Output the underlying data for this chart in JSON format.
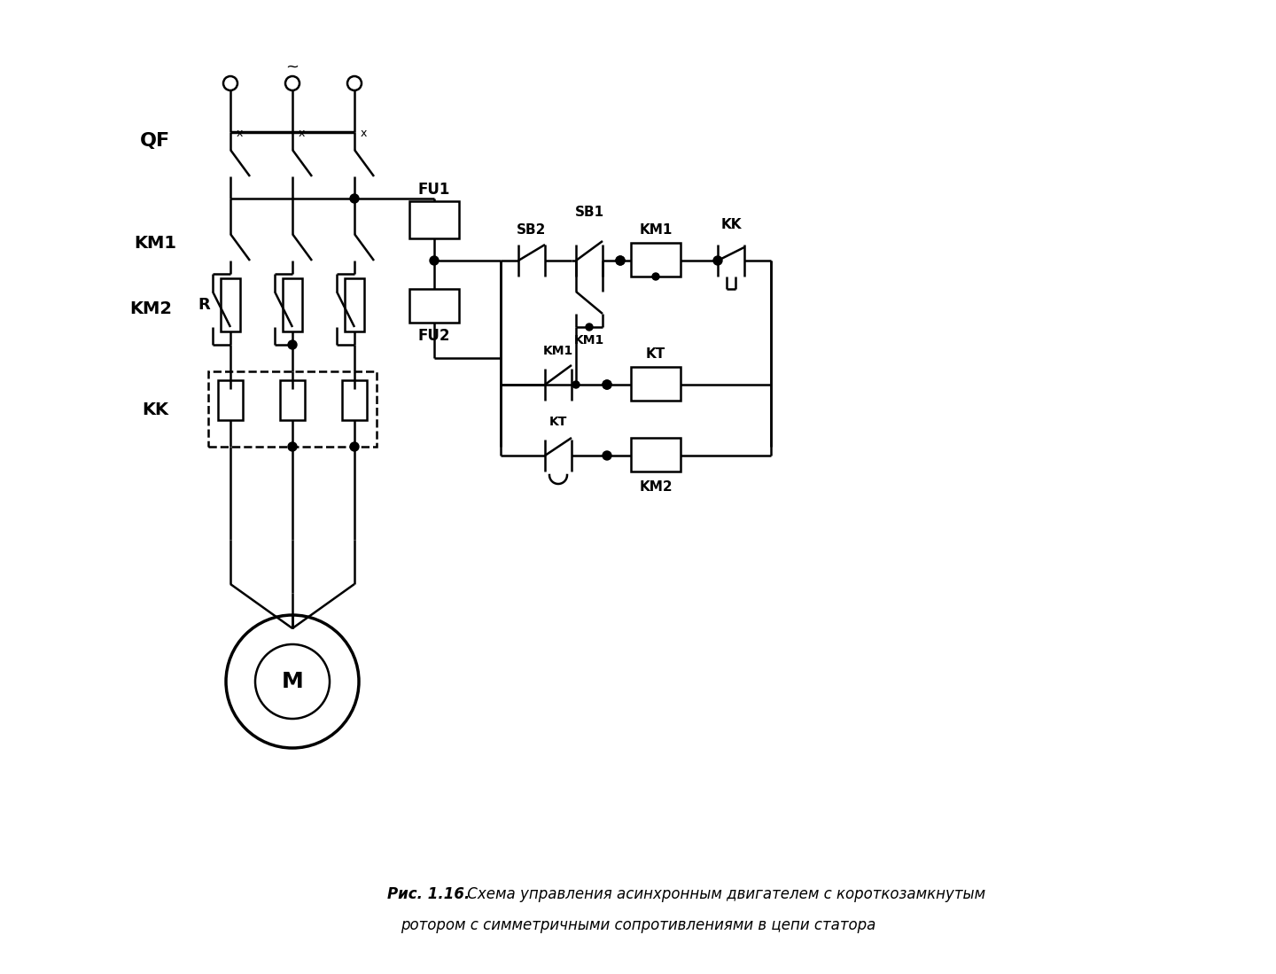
{
  "bg_color": "#ffffff",
  "line_color": "#000000",
  "lw": 1.8,
  "caption_bold": "Рис. 1.16.",
  "caption_rest1": " Схема управления асинхронным двигателем с короткозамкнутым",
  "caption_line2": "ротором с симметричными сопротивлениями в цепи статора"
}
